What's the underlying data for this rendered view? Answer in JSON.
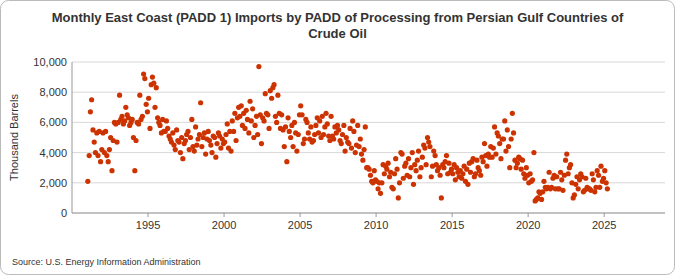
{
  "chart_data": {
    "type": "scatter",
    "title": "Monthly East Coast (PADD 1) Imports by PADD of Processing from Persian Gulf Countries of Crude Oil",
    "y_label": "Thousand Barrels",
    "source": "Source: U.S. Energy Information Administration",
    "color": "#cc3300",
    "marker": "circle",
    "grid": true,
    "xlim": [
      1990,
      2029
    ],
    "xticks": [
      1995,
      2000,
      2005,
      2010,
      2015,
      2020,
      2025
    ],
    "ylim": [
      0,
      10000
    ],
    "yticks": [
      0,
      {
        "value": 2000,
        "label": "2,000"
      },
      {
        "value": 4000,
        "label": "4,000"
      },
      {
        "value": 6000,
        "label": "6,000"
      },
      {
        "value": 8000,
        "label": "8,000"
      },
      {
        "value": 10000,
        "label": "10,000"
      }
    ],
    "x": [
      1991.04,
      1991.13,
      1991.21,
      1991.29,
      1991.38,
      1991.46,
      1991.54,
      1991.63,
      1991.71,
      1991.79,
      1991.88,
      1991.96,
      1992.04,
      1992.13,
      1992.21,
      1992.29,
      1992.38,
      1992.46,
      1992.54,
      1992.63,
      1992.71,
      1992.79,
      1992.88,
      1992.96,
      1993.04,
      1993.13,
      1993.21,
      1993.29,
      1993.38,
      1993.46,
      1993.54,
      1993.63,
      1993.71,
      1993.79,
      1993.88,
      1993.96,
      1994.04,
      1994.13,
      1994.21,
      1994.29,
      1994.38,
      1994.46,
      1994.54,
      1994.63,
      1994.71,
      1994.79,
      1994.88,
      1994.96,
      1995.04,
      1995.13,
      1995.21,
      1995.29,
      1995.38,
      1995.46,
      1995.54,
      1995.63,
      1995.71,
      1995.79,
      1995.88,
      1995.96,
      1996.04,
      1996.13,
      1996.21,
      1996.29,
      1996.38,
      1996.46,
      1996.54,
      1996.63,
      1996.71,
      1996.79,
      1996.88,
      1996.96,
      1997.04,
      1997.13,
      1997.21,
      1997.29,
      1997.38,
      1997.46,
      1997.54,
      1997.63,
      1997.71,
      1997.79,
      1997.88,
      1997.96,
      1998.04,
      1998.13,
      1998.21,
      1998.29,
      1998.38,
      1998.46,
      1998.54,
      1998.63,
      1998.71,
      1998.79,
      1998.88,
      1998.96,
      1999.04,
      1999.13,
      1999.21,
      1999.29,
      1999.38,
      1999.46,
      1999.54,
      1999.63,
      1999.71,
      1999.79,
      1999.88,
      1999.96,
      2000.04,
      2000.13,
      2000.21,
      2000.29,
      2000.38,
      2000.46,
      2000.54,
      2000.63,
      2000.71,
      2000.79,
      2000.88,
      2000.96,
      2001.04,
      2001.13,
      2001.21,
      2001.29,
      2001.38,
      2001.46,
      2001.54,
      2001.63,
      2001.71,
      2001.79,
      2001.88,
      2001.96,
      2002.04,
      2002.13,
      2002.21,
      2002.29,
      2002.38,
      2002.46,
      2002.54,
      2002.63,
      2002.71,
      2002.79,
      2002.88,
      2002.96,
      2003.04,
      2003.13,
      2003.21,
      2003.29,
      2003.38,
      2003.46,
      2003.54,
      2003.63,
      2003.71,
      2003.79,
      2003.88,
      2003.96,
      2004.04,
      2004.13,
      2004.21,
      2004.29,
      2004.38,
      2004.46,
      2004.54,
      2004.63,
      2004.71,
      2004.79,
      2004.88,
      2004.96,
      2005.04,
      2005.13,
      2005.21,
      2005.29,
      2005.38,
      2005.46,
      2005.54,
      2005.63,
      2005.71,
      2005.79,
      2005.88,
      2005.96,
      2006.04,
      2006.13,
      2006.21,
      2006.29,
      2006.38,
      2006.46,
      2006.54,
      2006.63,
      2006.71,
      2006.79,
      2006.88,
      2006.96,
      2007.04,
      2007.13,
      2007.21,
      2007.29,
      2007.38,
      2007.46,
      2007.54,
      2007.63,
      2007.71,
      2007.79,
      2007.88,
      2007.96,
      2008.04,
      2008.13,
      2008.21,
      2008.29,
      2008.38,
      2008.46,
      2008.54,
      2008.63,
      2008.71,
      2008.79,
      2008.88,
      2008.96,
      2009.04,
      2009.13,
      2009.21,
      2009.29,
      2009.38,
      2009.46,
      2009.54,
      2009.63,
      2009.71,
      2009.79,
      2009.88,
      2009.96,
      2010.04,
      2010.13,
      2010.21,
      2010.29,
      2010.38,
      2010.46,
      2010.54,
      2010.63,
      2010.71,
      2010.79,
      2010.88,
      2010.96,
      2011.04,
      2011.13,
      2011.21,
      2011.29,
      2011.38,
      2011.46,
      2011.54,
      2011.63,
      2011.71,
      2011.79,
      2011.88,
      2011.96,
      2012.04,
      2012.13,
      2012.21,
      2012.29,
      2012.38,
      2012.46,
      2012.54,
      2012.63,
      2012.71,
      2012.79,
      2012.88,
      2012.96,
      2013.04,
      2013.13,
      2013.21,
      2013.29,
      2013.38,
      2013.46,
      2013.54,
      2013.63,
      2013.71,
      2013.79,
      2013.88,
      2013.96,
      2014.04,
      2014.13,
      2014.21,
      2014.29,
      2014.38,
      2014.46,
      2014.54,
      2014.63,
      2014.71,
      2014.79,
      2014.88,
      2014.96,
      2015.04,
      2015.13,
      2015.21,
      2015.29,
      2015.38,
      2015.46,
      2015.54,
      2015.63,
      2015.71,
      2015.79,
      2015.88,
      2015.96,
      2016.04,
      2016.13,
      2016.21,
      2016.29,
      2016.38,
      2016.46,
      2016.54,
      2016.63,
      2016.71,
      2016.79,
      2016.88,
      2016.96,
      2017.04,
      2017.13,
      2017.21,
      2017.29,
      2017.38,
      2017.46,
      2017.54,
      2017.63,
      2017.71,
      2017.79,
      2017.88,
      2017.96,
      2018.04,
      2018.13,
      2018.21,
      2018.29,
      2018.38,
      2018.46,
      2018.54,
      2018.63,
      2018.71,
      2018.79,
      2018.88,
      2018.96,
      2019.04,
      2019.13,
      2019.21,
      2019.29,
      2019.38,
      2019.46,
      2019.54,
      2019.63,
      2019.71,
      2019.79,
      2019.88,
      2019.96,
      2020.04,
      2020.13,
      2020.21,
      2020.29,
      2020.38,
      2020.46,
      2020.54,
      2020.63,
      2020.71,
      2020.79,
      2020.88,
      2020.96,
      2021.04,
      2021.13,
      2021.21,
      2021.29,
      2021.38,
      2021.46,
      2021.54,
      2021.63,
      2021.71,
      2021.79,
      2021.88,
      2021.96,
      2022.04,
      2022.13,
      2022.21,
      2022.29,
      2022.38,
      2022.46,
      2022.54,
      2022.63,
      2022.71,
      2022.79,
      2022.88,
      2022.96,
      2023.04,
      2023.13,
      2023.21,
      2023.29,
      2023.38,
      2023.46,
      2023.54,
      2023.63,
      2023.71,
      2023.79,
      2023.88,
      2023.96,
      2024.04,
      2024.13,
      2024.21,
      2024.29,
      2024.38,
      2024.46,
      2024.54,
      2024.63,
      2024.71,
      2024.79,
      2024.88,
      2024.96,
      2025.04,
      2025.13,
      2025.21
    ],
    "values": [
      2100,
      3800,
      6700,
      7500,
      5500,
      4700,
      4000,
      5300,
      3800,
      5400,
      3400,
      4200,
      5300,
      4000,
      5400,
      3800,
      3400,
      4200,
      5000,
      2800,
      4800,
      6000,
      5900,
      4700,
      6000,
      7800,
      6200,
      6400,
      5900,
      6100,
      7000,
      6500,
      6300,
      5800,
      6000,
      6200,
      5000,
      2800,
      4800,
      6000,
      5900,
      7800,
      6200,
      6400,
      9200,
      8900,
      7200,
      6700,
      7600,
      5600,
      8500,
      9000,
      8600,
      7000,
      8300,
      6300,
      6000,
      5800,
      5300,
      6200,
      5400,
      5400,
      6100,
      5600,
      5100,
      4900,
      4700,
      5300,
      4500,
      4200,
      5500,
      4800,
      4700,
      4000,
      5000,
      3600,
      4600,
      4800,
      5200,
      5400,
      4200,
      5000,
      6200,
      4400,
      4100,
      5700,
      4500,
      4900,
      5200,
      7300,
      4400,
      5000,
      5300,
      3900,
      4900,
      5400,
      4800,
      4500,
      4000,
      5100,
      5000,
      3700,
      4600,
      5300,
      5100,
      4300,
      4900,
      4600,
      4700,
      5200,
      5900,
      4300,
      5400,
      4100,
      6100,
      5400,
      6600,
      4800,
      6300,
      7000,
      6400,
      7100,
      5800,
      6600,
      5600,
      6800,
      6200,
      5300,
      7400,
      6100,
      6900,
      5000,
      5800,
      6400,
      5200,
      9700,
      6500,
      4600,
      6300,
      6100,
      7900,
      6600,
      6500,
      5600,
      8100,
      7600,
      8300,
      8500,
      6400,
      6000,
      7800,
      6600,
      5600,
      6500,
      5500,
      4400,
      5700,
      3400,
      6300,
      5400,
      5000,
      5800,
      4400,
      6000,
      5300,
      4100,
      5200,
      6500,
      7100,
      6500,
      4600,
      4900,
      6200,
      6000,
      5300,
      4900,
      5700,
      4700,
      4800,
      5200,
      5800,
      6300,
      5300,
      6100,
      5000,
      6400,
      5200,
      5700,
      6600,
      5900,
      5100,
      4800,
      6400,
      5100,
      4900,
      5700,
      5300,
      5800,
      5500,
      4800,
      4600,
      5200,
      5800,
      4100,
      5000,
      4700,
      4600,
      5600,
      4300,
      6100,
      5400,
      4000,
      4500,
      5800,
      4400,
      4900,
      3900,
      3500,
      4200,
      5700,
      3000,
      3000,
      2900,
      2500,
      2100,
      2000,
      2800,
      2200,
      2100,
      1600,
      2000,
      1300,
      2000,
      3200,
      2600,
      3100,
      2900,
      3300,
      2400,
      2700,
      1700,
      1600,
      2600,
      3600,
      2900,
      1000,
      2000,
      4000,
      3900,
      2300,
      3100,
      3300,
      2500,
      3600,
      2400,
      3000,
      4000,
      1900,
      3200,
      2800,
      3500,
      4100,
      2400,
      3000,
      3700,
      4500,
      4300,
      3200,
      5000,
      4700,
      4400,
      2400,
      3100,
      4100,
      3800,
      3200,
      2800,
      3000,
      2500,
      1000,
      3200,
      3000,
      3400,
      3800,
      2600,
      3300,
      2700,
      2900,
      2600,
      3200,
      2200,
      3000,
      2700,
      2400,
      2800,
      2300,
      2600,
      3100,
      2100,
      2900,
      1900,
      3300,
      2700,
      3400,
      3600,
      2400,
      2600,
      3500,
      3000,
      2800,
      2500,
      3700,
      3400,
      4600,
      3800,
      3100,
      3900,
      3700,
      4400,
      3700,
      4300,
      5700,
      3900,
      5300,
      5100,
      4600,
      3600,
      4900,
      4900,
      6100,
      4100,
      5500,
      4400,
      3000,
      4900,
      6600,
      5300,
      3500,
      3000,
      3300,
      3700,
      3600,
      2900,
      3500,
      2600,
      2300,
      3000,
      2500,
      2000,
      2600,
      2100,
      2200,
      4000,
      800,
      900,
      1000,
      1400,
      1300,
      900,
      1400,
      2100,
      1700,
      1600,
      1700,
      2700,
      1600,
      1700,
      2300,
      2500,
      1600,
      2400,
      1600,
      1600,
      2700,
      2200,
      1500,
      2500,
      3500,
      3900,
      2600,
      3000,
      3200,
      2000,
      1000,
      1200,
      1900,
      2400,
      1600,
      2200,
      2600,
      2400,
      1400,
      1500,
      2300,
      1700,
      1600,
      1600,
      1500,
      2600,
      2200,
      1400,
      1700,
      2800,
      2500,
      1700,
      3100,
      2100,
      2300,
      2800,
      2000,
      1600
    ]
  }
}
